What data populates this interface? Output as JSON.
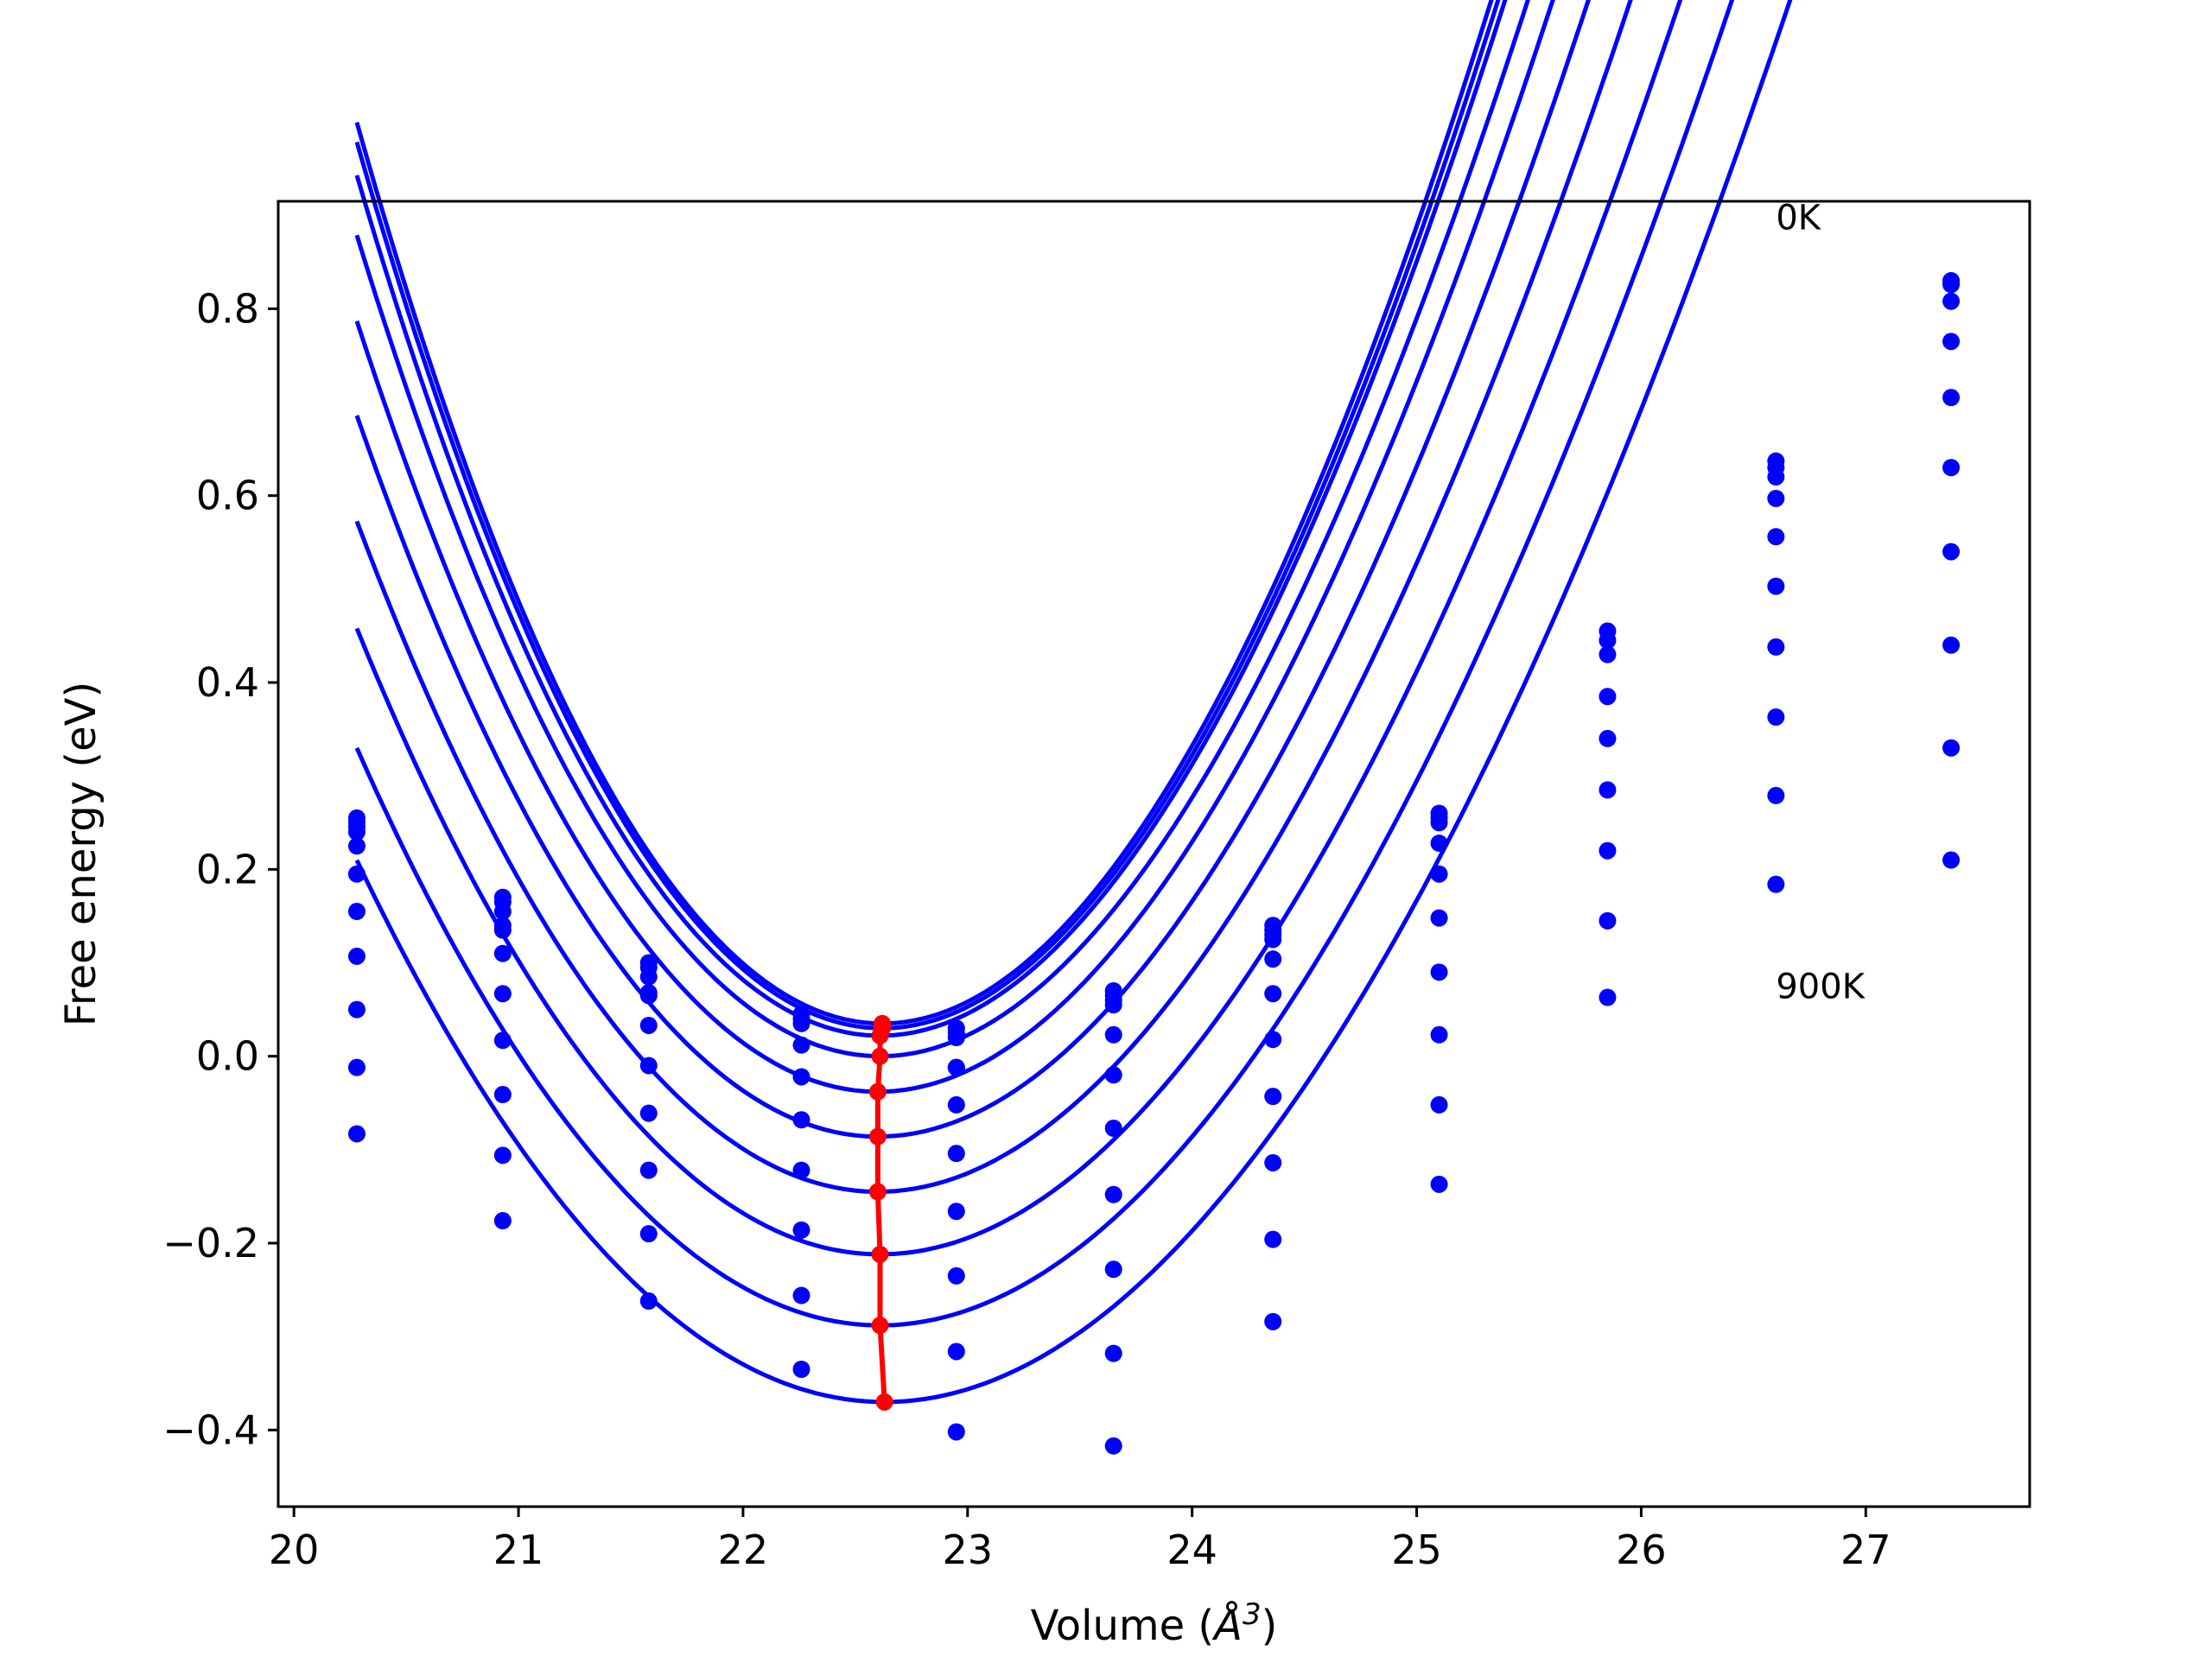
{
  "chart_data": {
    "type": "scatter",
    "title": "",
    "xlabel": "Volume (",
    "xlabel_symbol": "Å",
    "xlabel_sup": "3",
    "xlabel_close": ")",
    "ylabel": "Free energy (eV)",
    "xlim": [
      19.93,
      27.73
    ],
    "ylim": [
      -0.482,
      0.915
    ],
    "xticks": [
      20,
      21,
      22,
      23,
      24,
      25,
      26,
      27
    ],
    "yticks": [
      -0.4,
      -0.2,
      0.0,
      0.2,
      0.4,
      0.6,
      0.8
    ],
    "xtick_labels": [
      "20",
      "21",
      "22",
      "23",
      "24",
      "25",
      "26",
      "27"
    ],
    "ytick_labels": [
      "−0.4",
      "−0.2",
      "0.0",
      "0.2",
      "0.4",
      "0.6",
      "0.8"
    ],
    "grid": false,
    "volumes": [
      20.28,
      20.93,
      21.58,
      22.26,
      22.95,
      23.65,
      24.36,
      25.1,
      25.85,
      26.6,
      27.38
    ],
    "series": [
      {
        "points": [
          0.255,
          0.17,
          0.1,
          0.045,
          0.03,
          0.07,
          0.14,
          0.26,
          0.455,
          0.637,
          0.83
        ]
      },
      {
        "points": [
          0.25,
          0.165,
          0.095,
          0.04,
          0.025,
          0.065,
          0.135,
          0.255,
          0.445,
          0.63,
          0.828
        ]
      },
      {
        "points": [
          0.245,
          0.155,
          0.085,
          0.035,
          0.02,
          0.06,
          0.13,
          0.25,
          0.43,
          0.62,
          0.826
        ]
      },
      {
        "points": [
          0.24,
          0.14,
          0.068,
          0.012,
          -0.012,
          0.055,
          0.125,
          0.228,
          0.385,
          0.597,
          0.808
        ]
      },
      {
        "points": [
          0.225,
          0.135,
          0.065,
          -0.022,
          -0.012,
          0.023,
          0.104,
          0.195,
          0.34,
          0.556,
          0.765
        ]
      },
      {
        "points": [
          0.195,
          0.11,
          0.033,
          -0.068,
          -0.052,
          -0.02,
          0.067,
          0.148,
          0.285,
          0.503,
          0.705
        ]
      },
      {
        "points": [
          0.155,
          0.067,
          -0.01,
          -0.122,
          -0.104,
          -0.077,
          0.018,
          0.09,
          0.22,
          0.438,
          0.63
        ]
      },
      {
        "points": [
          0.107,
          0.017,
          -0.061,
          -0.186,
          -0.166,
          -0.148,
          -0.043,
          0.023,
          0.145,
          0.363,
          0.54
        ]
      },
      {
        "points": [
          0.05,
          -0.041,
          -0.122,
          -0.256,
          -0.235,
          -0.228,
          -0.114,
          -0.052,
          0.063,
          0.279,
          0.44
        ]
      },
      {
        "points": [
          -0.012,
          -0.106,
          -0.19,
          -0.335,
          -0.316,
          -0.318,
          -0.196,
          -0.137,
          null,
          0.184,
          0.33
        ]
      },
      {
        "points": [
          -0.083,
          -0.176,
          -0.262,
          null,
          -0.402,
          -0.417,
          -0.284,
          null,
          null,
          null,
          0.21
        ]
      }
    ],
    "fits": [
      {
        "xmin": 20.28,
        "xmax": 27.38,
        "v0": 22.62,
        "e0": 0.035,
        "a": 0.1635,
        "b": 0.0054
      },
      {
        "xmin": 20.28,
        "xmax": 27.38,
        "v0": 22.62,
        "e0": 0.03,
        "a": 0.1608,
        "b": 0.0053
      },
      {
        "xmin": 20.28,
        "xmax": 27.38,
        "v0": 22.61,
        "e0": 0.022,
        "a": 0.1575,
        "b": 0.0052
      },
      {
        "xmin": 20.28,
        "xmax": 27.38,
        "v0": 22.61,
        "e0": 0.0,
        "a": 0.1502,
        "b": 0.005
      },
      {
        "xmin": 20.28,
        "xmax": 27.38,
        "v0": 22.6,
        "e0": -0.038,
        "a": 0.1428,
        "b": 0.0045
      },
      {
        "xmin": 20.28,
        "xmax": 27.38,
        "v0": 22.6,
        "e0": -0.086,
        "a": 0.1341,
        "b": 0.004
      },
      {
        "xmin": 20.28,
        "xmax": 27.38,
        "v0": 22.6,
        "e0": -0.145,
        "a": 0.1252,
        "b": 0.0035
      },
      {
        "xmin": 20.28,
        "xmax": 27.38,
        "v0": 22.61,
        "e0": -0.212,
        "a": 0.1164,
        "b": 0.003
      },
      {
        "xmin": 20.28,
        "xmax": 27.38,
        "v0": 22.61,
        "e0": -0.288,
        "a": 0.108,
        "b": 0.0025
      },
      {
        "xmin": 20.28,
        "xmax": 27.38,
        "v0": 22.63,
        "e0": -0.37,
        "a": 0.1003,
        "b": 0.002
      }
    ],
    "minima": {
      "x": [
        22.62,
        22.62,
        22.61,
        22.61,
        22.6,
        22.6,
        22.6,
        22.61,
        22.61,
        22.63
      ],
      "y": [
        0.035,
        0.03,
        0.022,
        0.0,
        -0.038,
        -0.086,
        -0.145,
        -0.212,
        -0.288,
        -0.37
      ]
    },
    "annotations": [
      {
        "text": "0K",
        "x": 26.6,
        "y": 0.885
      },
      {
        "text": "900K",
        "x": 26.6,
        "y": 0.062
      }
    ],
    "colors": {
      "series": "#0000ff",
      "minima": "#ff0000",
      "axes": "#000000"
    }
  }
}
